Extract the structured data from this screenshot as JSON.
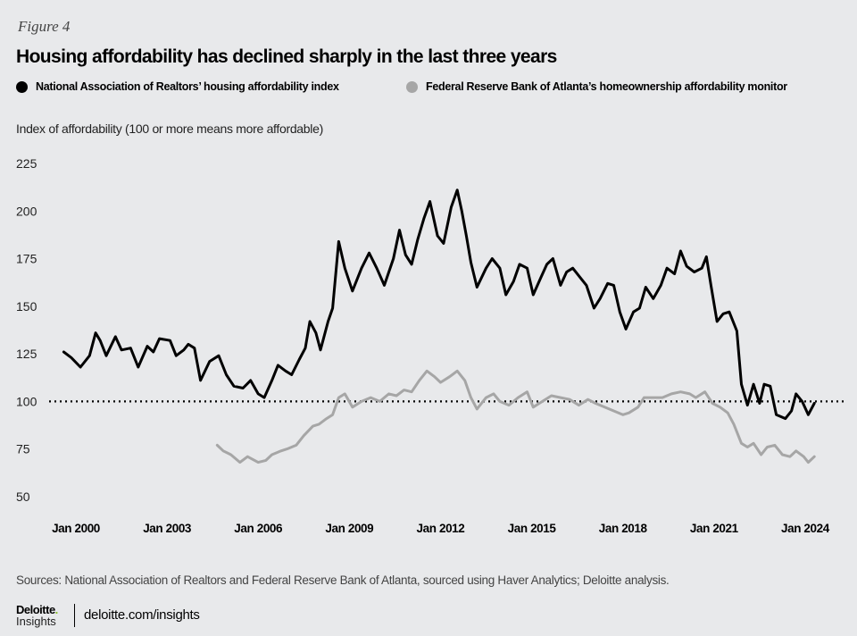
{
  "figure_label": "Figure 4",
  "footer": {
    "sources": "Sources: National Association of Realtors and Federal Reserve Bank of Atlanta, sourced using Haver Analytics; Deloitte analysis.",
    "logo_brand": "Deloitte",
    "logo_sub": "Insights",
    "url": "deloitte.com/insights"
  },
  "chart_data": {
    "type": "line",
    "title": "Housing affordability has declined sharply in the last three years",
    "ylabel": "Index of affordability (100 or more means more affordable)",
    "xlabel": "",
    "ylim": [
      50,
      225
    ],
    "xlim": [
      1999.6,
      2024.3
    ],
    "yticks": [
      50,
      75,
      100,
      125,
      150,
      175,
      200,
      225
    ],
    "xticks": [
      2000,
      2003,
      2006,
      2009,
      2012,
      2015,
      2018,
      2021,
      2024
    ],
    "xtick_labels": [
      "Jan 2000",
      "Jan 2003",
      "Jan 2006",
      "Jan 2009",
      "Jan 2012",
      "Jan 2015",
      "Jan 2018",
      "Jan 2021",
      "Jan 2024"
    ],
    "reference_line": 100,
    "grid": false,
    "legend_position": "top-left",
    "series": [
      {
        "name": "National Association of Realtors’ housing affordability index",
        "color": "#000000",
        "x": [
          1999.6,
          1999.85,
          2000.15,
          2000.45,
          2000.65,
          2000.8,
          2001.0,
          2001.3,
          2001.5,
          2001.8,
          2002.05,
          2002.35,
          2002.55,
          2002.75,
          2003.1,
          2003.3,
          2003.55,
          2003.7,
          2003.9,
          2004.1,
          2004.4,
          2004.7,
          2004.95,
          2005.2,
          2005.5,
          2005.75,
          2006.0,
          2006.2,
          2006.45,
          2006.65,
          2006.9,
          2007.1,
          2007.35,
          2007.55,
          2007.7,
          2007.9,
          2008.05,
          2008.3,
          2008.45,
          2008.65,
          2008.85,
          2009.1,
          2009.4,
          2009.65,
          2009.9,
          2010.15,
          2010.45,
          2010.65,
          2010.85,
          2011.05,
          2011.25,
          2011.45,
          2011.65,
          2011.9,
          2012.1,
          2012.35,
          2012.55,
          2012.7,
          2012.85,
          2013.0,
          2013.2,
          2013.5,
          2013.7,
          2013.95,
          2014.15,
          2014.4,
          2014.6,
          2014.85,
          2015.05,
          2015.3,
          2015.5,
          2015.7,
          2015.95,
          2016.15,
          2016.35,
          2016.6,
          2016.8,
          2017.05,
          2017.25,
          2017.5,
          2017.7,
          2017.9,
          2018.1,
          2018.35,
          2018.55,
          2018.75,
          2019.0,
          2019.25,
          2019.45,
          2019.7,
          2019.9,
          2020.1,
          2020.35,
          2020.6,
          2020.75,
          2020.9,
          2021.1,
          2021.3,
          2021.5,
          2021.75,
          2021.9,
          2022.1,
          2022.3,
          2022.5,
          2022.65,
          2022.85,
          2023.05,
          2023.35,
          2023.55,
          2023.7,
          2023.9,
          2024.1,
          2024.3
        ],
        "values": [
          126,
          123,
          118,
          124,
          136,
          132,
          124,
          134,
          127,
          128,
          118,
          129,
          126,
          133,
          132,
          124,
          127,
          130,
          128,
          111,
          121,
          124,
          114,
          108,
          107,
          111,
          104,
          102,
          111,
          119,
          116,
          114,
          122,
          128,
          142,
          136,
          127,
          142,
          149,
          184,
          170,
          158,
          170,
          178,
          170,
          161,
          175,
          190,
          177,
          172,
          185,
          196,
          205,
          187,
          183,
          202,
          211,
          200,
          187,
          173,
          160,
          170,
          175,
          170,
          156,
          163,
          172,
          170,
          156,
          165,
          172,
          175,
          161,
          168,
          170,
          165,
          161,
          149,
          154,
          162,
          161,
          147,
          138,
          147,
          149,
          160,
          154,
          161,
          170,
          167,
          179,
          171,
          168,
          170,
          176,
          161,
          142,
          146,
          147,
          137,
          109,
          98,
          109,
          99,
          109,
          108,
          93,
          91,
          95,
          104,
          100,
          93,
          99
        ]
      },
      {
        "name": "Federal Reserve Bank of Atlanta’s homeownership affordability monitor",
        "color": "#a6a6a6",
        "x": [
          2004.65,
          2004.85,
          2005.1,
          2005.4,
          2005.65,
          2006.0,
          2006.25,
          2006.45,
          2006.75,
          2006.95,
          2007.25,
          2007.5,
          2007.8,
          2008.0,
          2008.25,
          2008.45,
          2008.65,
          2008.85,
          2009.1,
          2009.4,
          2009.7,
          2010.0,
          2010.3,
          2010.55,
          2010.8,
          2011.05,
          2011.3,
          2011.55,
          2011.8,
          2012.0,
          2012.3,
          2012.55,
          2012.8,
          2013.0,
          2013.2,
          2013.5,
          2013.75,
          2013.95,
          2014.25,
          2014.55,
          2014.85,
          2015.05,
          2015.35,
          2015.65,
          2015.95,
          2016.25,
          2016.55,
          2016.85,
          2017.1,
          2017.4,
          2017.7,
          2018.0,
          2018.2,
          2018.5,
          2018.7,
          2019.0,
          2019.3,
          2019.6,
          2019.9,
          2020.2,
          2020.4,
          2020.7,
          2020.95,
          2021.2,
          2021.45,
          2021.65,
          2021.9,
          2022.1,
          2022.3,
          2022.55,
          2022.75,
          2023.0,
          2023.25,
          2023.5,
          2023.7,
          2023.95,
          2024.1,
          2024.3
        ],
        "values": [
          77,
          74,
          72,
          68,
          71,
          68,
          69,
          72,
          74,
          75,
          77,
          82,
          87,
          88,
          91,
          93,
          102,
          104,
          97,
          100,
          102,
          100,
          104,
          103,
          106,
          105,
          111,
          116,
          113,
          110,
          113,
          116,
          111,
          102,
          96,
          102,
          104,
          100,
          98,
          102,
          105,
          97,
          100,
          103,
          102,
          101,
          98,
          101,
          99,
          97,
          95,
          93,
          94,
          97,
          102,
          102,
          102,
          104,
          105,
          104,
          102,
          105,
          99,
          97,
          94,
          88,
          78,
          76,
          78,
          72,
          76,
          77,
          72,
          71,
          74,
          71,
          68,
          71
        ]
      }
    ]
  }
}
